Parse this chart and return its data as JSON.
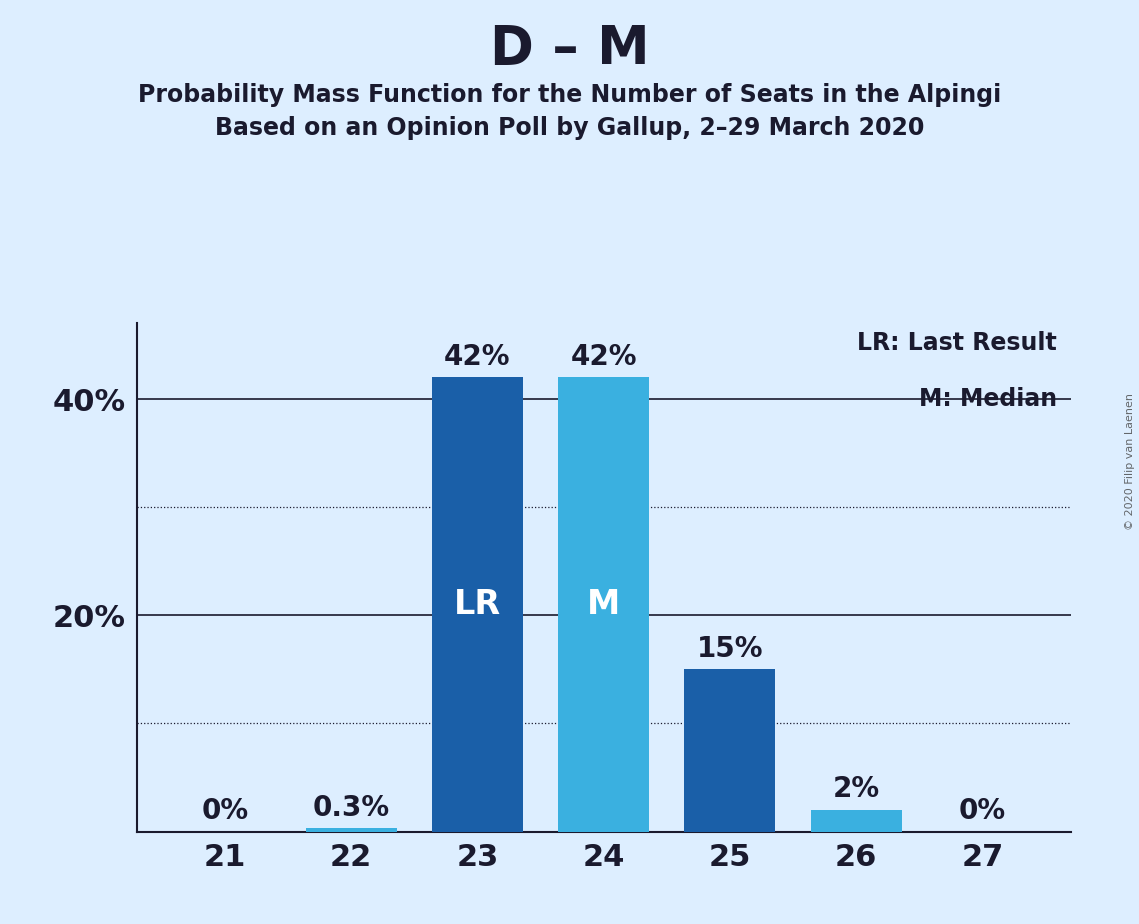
{
  "title": "D – M",
  "subtitle1": "Probability Mass Function for the Number of Seats in the Alpingi",
  "subtitle2": "Based on an Opinion Poll by Gallup, 2–29 March 2020",
  "watermark": "© 2020 Filip van Laenen",
  "seats": [
    21,
    22,
    23,
    24,
    25,
    26,
    27
  ],
  "values": [
    0.0,
    0.3,
    42.0,
    42.0,
    15.0,
    2.0,
    0.0
  ],
  "bar_colors": [
    "#1a5fa8",
    "#3ab0e0",
    "#1a5fa8",
    "#3ab0e0",
    "#1a5fa8",
    "#3ab0e0",
    "#1a5fa8"
  ],
  "LR_bar": 23,
  "M_bar": 24,
  "bar_labels": [
    "0%",
    "0.3%",
    "42%",
    "42%",
    "15%",
    "2%",
    "0%"
  ],
  "yticks": [
    0,
    10,
    20,
    30,
    40
  ],
  "ytick_labels": [
    "",
    "",
    "20%",
    "",
    "40%"
  ],
  "solid_gridlines": [
    20,
    40
  ],
  "dotted_gridlines": [
    10,
    30
  ],
  "ylim": [
    0,
    47
  ],
  "background_color": "#ddeeff",
  "text_color": "#1a1a2e",
  "bar_label_fontsize": 20,
  "bar_inner_fontsize": 24,
  "title_fontsize": 38,
  "subtitle_fontsize": 17,
  "ytick_fontsize": 22,
  "xtick_fontsize": 22,
  "legend_text": [
    "LR: Last Result",
    "M: Median"
  ],
  "legend_fontsize": 17,
  "watermark_fontsize": 8,
  "LR_color": "white",
  "M_color": "white"
}
